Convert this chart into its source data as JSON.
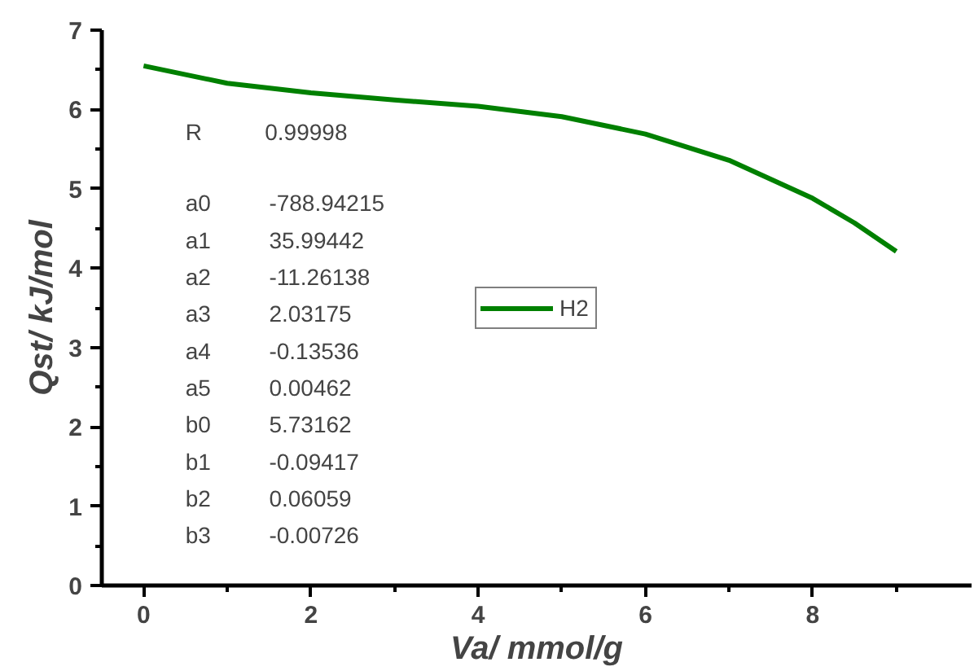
{
  "chart_data": {
    "type": "line",
    "xlabel": "Va/ mmol/g",
    "ylabel": "Qst/ kJ/mol",
    "x": [
      0,
      1,
      2,
      3,
      4,
      5,
      6,
      7,
      8,
      8.5,
      9
    ],
    "series": [
      {
        "name": "H2",
        "color": "#008000",
        "values": [
          6.55,
          6.33,
          6.21,
          6.12,
          6.04,
          5.91,
          5.69,
          5.36,
          4.88,
          4.57,
          4.21
        ]
      }
    ],
    "xlim": [
      -0.5,
      9.9
    ],
    "ylim": [
      0,
      7
    ],
    "xticks": [
      0,
      2,
      4,
      6,
      8
    ],
    "yticks": [
      0,
      1,
      2,
      3,
      4,
      5,
      6,
      7
    ],
    "annotations": [
      "R 0.99998",
      "a0 -788.94215",
      "a1 35.99442",
      "a2 -11.26138",
      "a3 2.03175",
      "a4 -0.13536",
      "a5 0.00462",
      "b0 5.73162",
      "b1 -0.09417",
      "b2 0.06059",
      "b3 -0.00726"
    ],
    "legend": "center",
    "grid": false,
    "marker": "none",
    "line_style": "solid"
  }
}
